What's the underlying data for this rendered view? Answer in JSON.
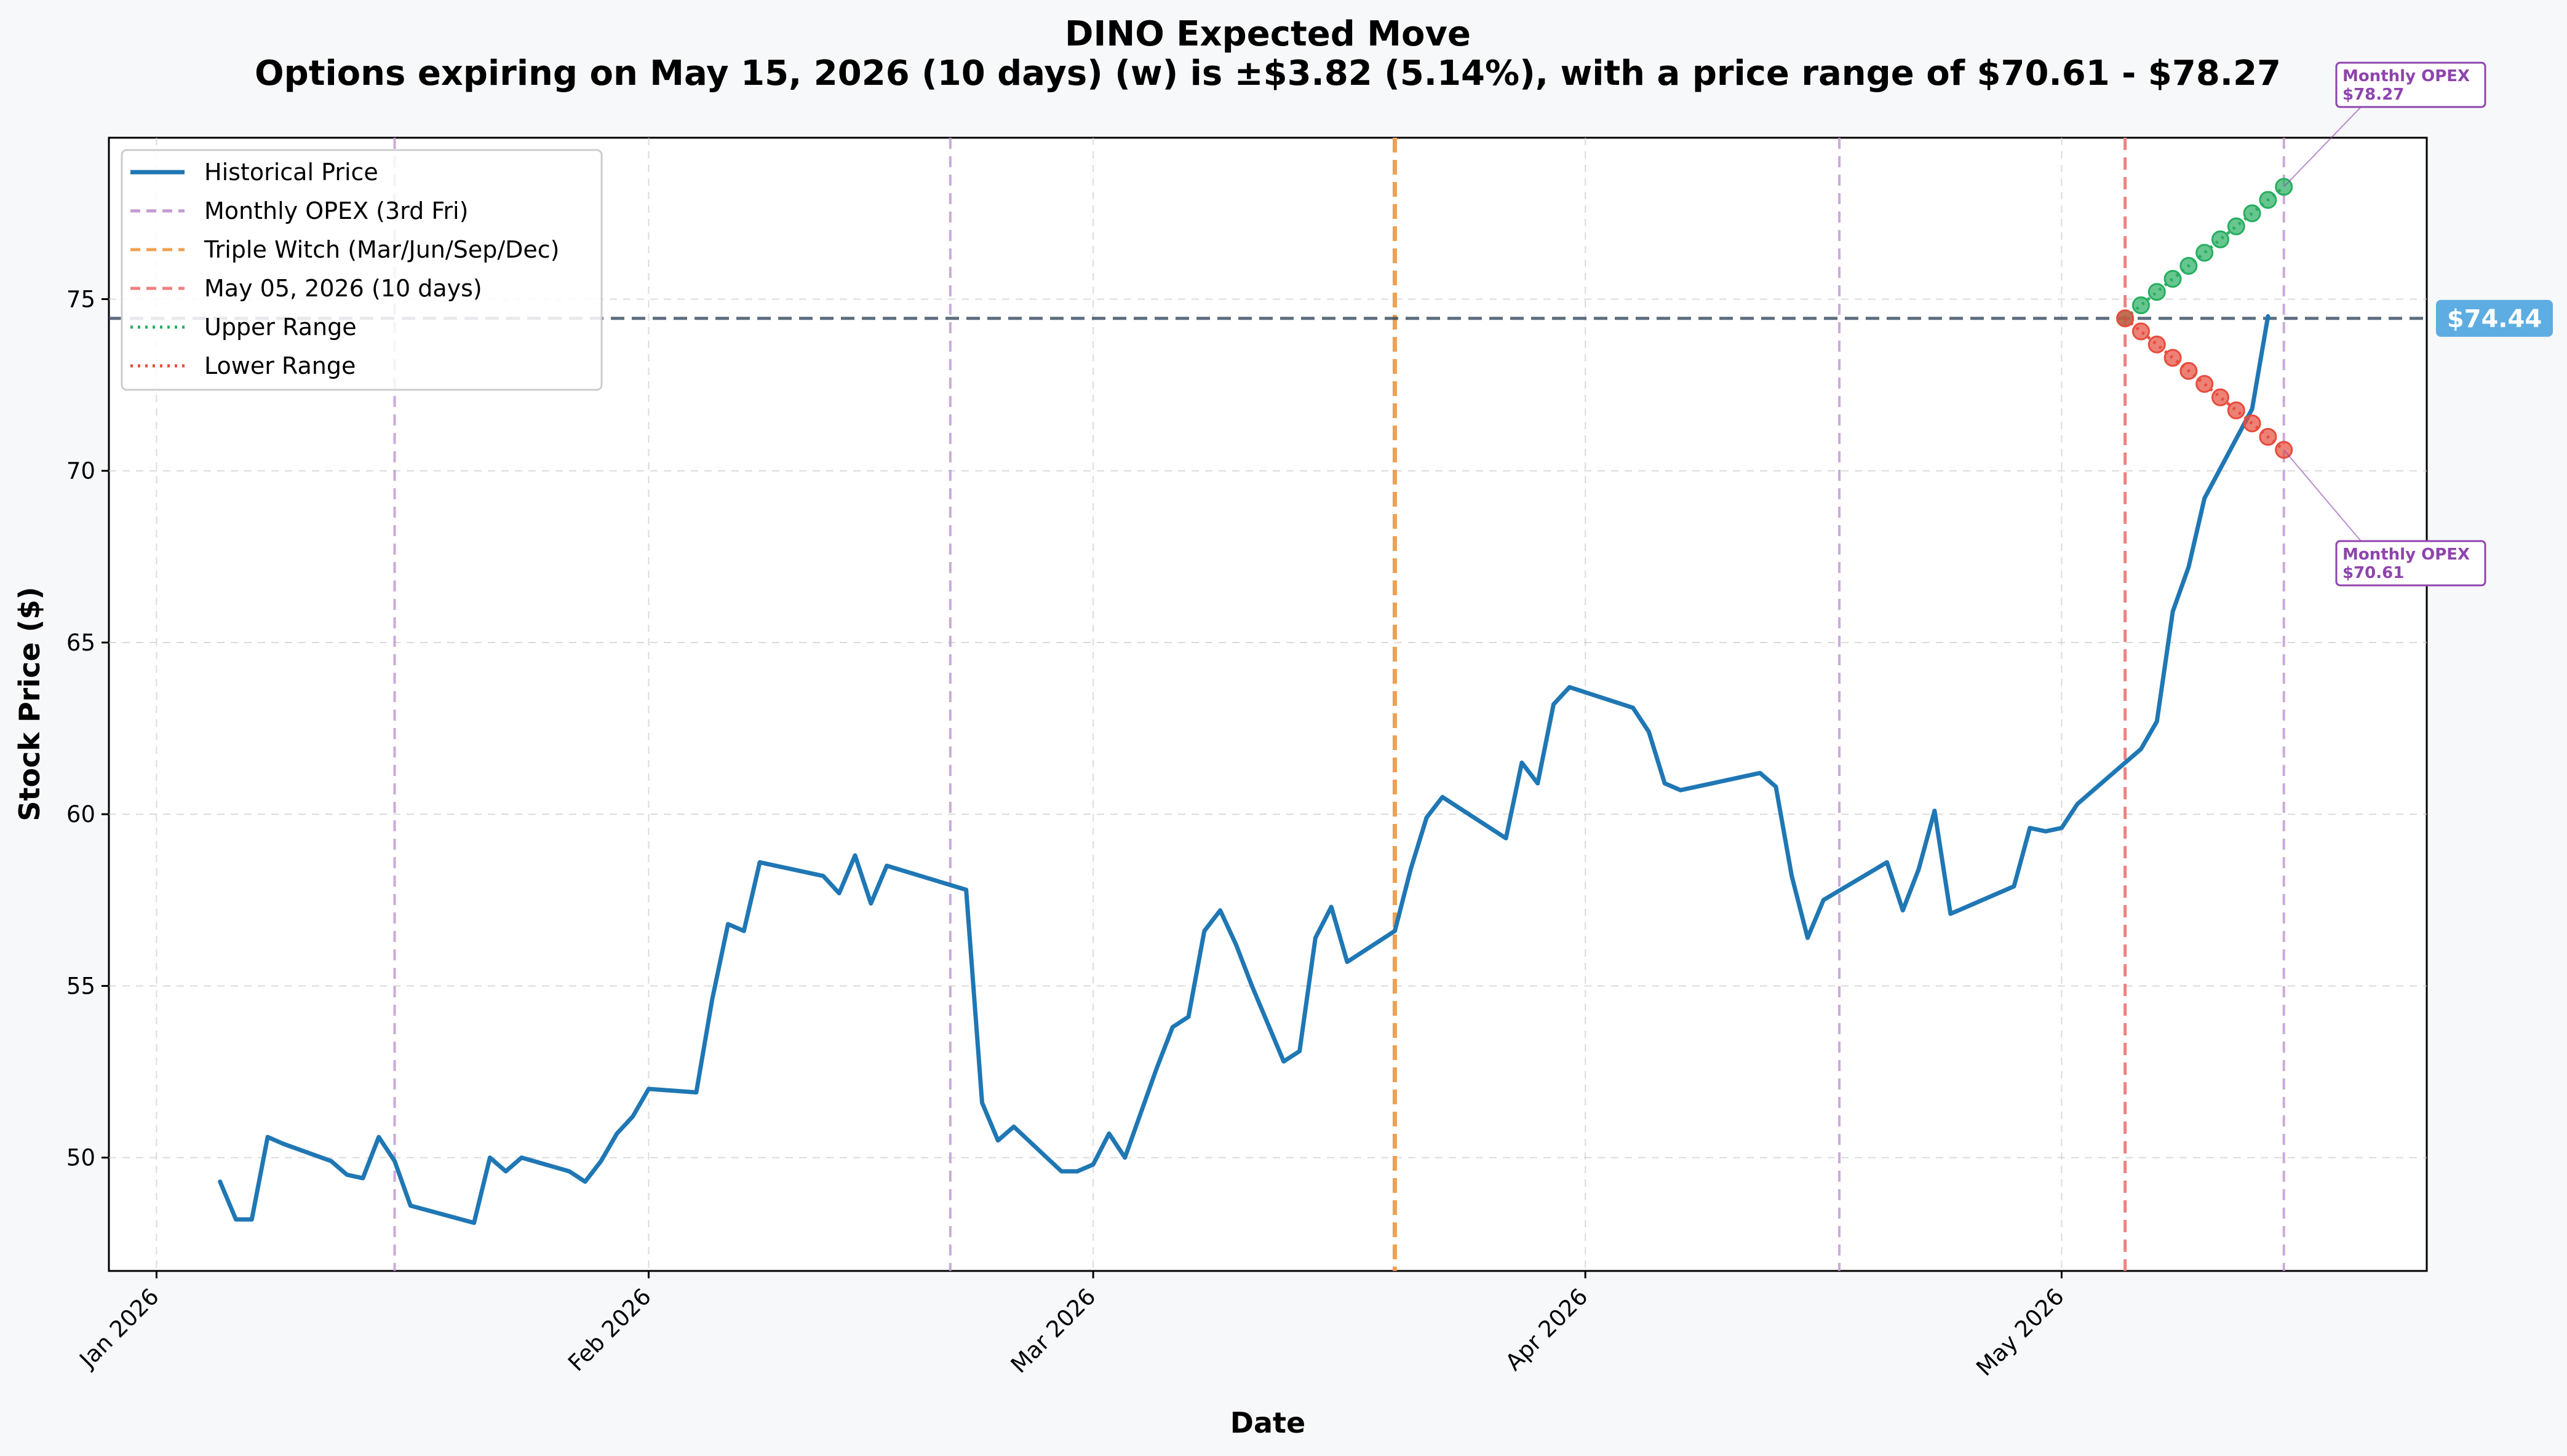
{
  "chart_data": {
    "type": "line",
    "title": "DINO Expected Move",
    "subtitle": "Options expiring on May 15, 2026 (10 days) (w) is ±$3.82 (5.14%), with a price range of $70.61 - $78.27",
    "xlabel": "Date",
    "ylabel": "Stock Price ($)",
    "ylim": [
      46.7,
      79.7
    ],
    "xlim": [
      "2025-12-29",
      "2026-05-24"
    ],
    "grid": true,
    "legend_position": "top-left",
    "x_ticks": [
      {
        "date": "2026-01-01",
        "label": "Jan 2026"
      },
      {
        "date": "2026-02-01",
        "label": "Feb 2026"
      },
      {
        "date": "2026-03-01",
        "label": "Mar 2026"
      },
      {
        "date": "2026-04-01",
        "label": "Apr 2026"
      },
      {
        "date": "2026-05-01",
        "label": "May 2026"
      }
    ],
    "y_ticks": [
      50,
      55,
      60,
      65,
      70,
      75
    ],
    "current_price": 74.44,
    "current_price_label": "$74.44",
    "colors": {
      "historical": "#1f77b4",
      "opex": "#c39bd3",
      "triple_witch": "#f0a050",
      "today": "#f08080",
      "upper": "#27ae60",
      "lower": "#e74c3c",
      "price_line": "#34495e",
      "price_tag": "#5dade2",
      "annotation": "#8e44ad"
    },
    "legend": [
      {
        "label": "Historical Price",
        "style": "solid",
        "color": "#1f77b4"
      },
      {
        "label": "Monthly OPEX (3rd Fri)",
        "style": "dashed",
        "color": "#c39bd3"
      },
      {
        "label": "Triple Witch (Mar/Jun/Sep/Dec)",
        "style": "dashed",
        "color": "#f0a050"
      },
      {
        "label": "May 05, 2026 (10 days)",
        "style": "dashed",
        "color": "#f08080"
      },
      {
        "label": "Upper Range",
        "style": "dotted",
        "color": "#27ae60"
      },
      {
        "label": "Lower Range",
        "style": "dotted",
        "color": "#e74c3c"
      }
    ],
    "vertical_lines": [
      {
        "date": "2026-01-16",
        "kind": "opex"
      },
      {
        "date": "2026-02-20",
        "kind": "opex"
      },
      {
        "date": "2026-03-20",
        "kind": "triple_witch"
      },
      {
        "date": "2026-04-17",
        "kind": "opex"
      },
      {
        "date": "2026-05-05",
        "kind": "today"
      },
      {
        "date": "2026-05-15",
        "kind": "opex"
      }
    ],
    "series": [
      {
        "name": "Historical Price",
        "points": [
          [
            "2026-01-05",
            49.3
          ],
          [
            "2026-01-06",
            48.2
          ],
          [
            "2026-01-07",
            48.2
          ],
          [
            "2026-01-08",
            50.6
          ],
          [
            "2026-01-09",
            50.4
          ],
          [
            "2026-01-12",
            49.9
          ],
          [
            "2026-01-13",
            49.5
          ],
          [
            "2026-01-14",
            49.4
          ],
          [
            "2026-01-15",
            50.6
          ],
          [
            "2026-01-16",
            49.9
          ],
          [
            "2026-01-17",
            48.6
          ],
          [
            "2026-01-21",
            48.1
          ],
          [
            "2026-01-22",
            50.0
          ],
          [
            "2026-01-23",
            49.6
          ],
          [
            "2026-01-24",
            50.0
          ],
          [
            "2026-01-27",
            49.6
          ],
          [
            "2026-01-28",
            49.3
          ],
          [
            "2026-01-29",
            49.9
          ],
          [
            "2026-01-30",
            50.7
          ],
          [
            "2026-01-31",
            51.2
          ],
          [
            "2026-02-01",
            52.0
          ],
          [
            "2026-02-04",
            51.9
          ],
          [
            "2026-02-05",
            54.6
          ],
          [
            "2026-02-06",
            56.8
          ],
          [
            "2026-02-07",
            56.6
          ],
          [
            "2026-02-08",
            58.6
          ],
          [
            "2026-02-12",
            58.2
          ],
          [
            "2026-02-13",
            57.7
          ],
          [
            "2026-02-14",
            58.8
          ],
          [
            "2026-02-15",
            57.4
          ],
          [
            "2026-02-16",
            58.5
          ],
          [
            "2026-02-21",
            57.8
          ],
          [
            "2026-02-22",
            51.6
          ],
          [
            "2026-02-23",
            50.5
          ],
          [
            "2026-02-24",
            50.9
          ],
          [
            "2026-02-27",
            49.6
          ],
          [
            "2026-02-28",
            49.6
          ],
          [
            "2026-03-01",
            49.8
          ],
          [
            "2026-03-02",
            50.7
          ],
          [
            "2026-03-03",
            50.0
          ],
          [
            "2026-03-04",
            51.3
          ],
          [
            "2026-03-05",
            52.6
          ],
          [
            "2026-03-06",
            53.8
          ],
          [
            "2026-03-07",
            54.1
          ],
          [
            "2026-03-08",
            56.6
          ],
          [
            "2026-03-09",
            57.2
          ],
          [
            "2026-03-10",
            56.2
          ],
          [
            "2026-03-11",
            55.0
          ],
          [
            "2026-03-12",
            53.9
          ],
          [
            "2026-03-13",
            52.8
          ],
          [
            "2026-03-14",
            53.1
          ],
          [
            "2026-03-15",
            56.4
          ],
          [
            "2026-03-16",
            57.3
          ],
          [
            "2026-03-17",
            55.7
          ],
          [
            "2026-03-20",
            56.6
          ],
          [
            "2026-03-21",
            58.4
          ],
          [
            "2026-03-22",
            59.9
          ],
          [
            "2026-03-23",
            60.5
          ],
          [
            "2026-03-27",
            59.3
          ],
          [
            "2026-03-28",
            61.5
          ],
          [
            "2026-03-29",
            60.9
          ],
          [
            "2026-03-30",
            63.2
          ],
          [
            "2026-03-31",
            63.7
          ],
          [
            "2026-04-04",
            63.1
          ],
          [
            "2026-04-05",
            62.4
          ],
          [
            "2026-04-06",
            60.9
          ],
          [
            "2026-04-07",
            60.7
          ],
          [
            "2026-04-12",
            61.2
          ],
          [
            "2026-04-13",
            60.8
          ],
          [
            "2026-04-14",
            58.2
          ],
          [
            "2026-04-15",
            56.4
          ],
          [
            "2026-04-16",
            57.5
          ],
          [
            "2026-04-20",
            58.6
          ],
          [
            "2026-04-21",
            57.2
          ],
          [
            "2026-04-22",
            58.4
          ],
          [
            "2026-04-23",
            60.1
          ],
          [
            "2026-04-24",
            57.1
          ],
          [
            "2026-04-28",
            57.9
          ],
          [
            "2026-04-29",
            59.6
          ],
          [
            "2026-04-30",
            59.5
          ],
          [
            "2026-05-01",
            59.6
          ],
          [
            "2026-05-02",
            60.3
          ],
          [
            "2026-05-06",
            61.9
          ],
          [
            "2026-05-07",
            62.7
          ],
          [
            "2026-05-08",
            65.9
          ],
          [
            "2026-05-09",
            67.2
          ],
          [
            "2026-05-10",
            69.2
          ],
          [
            "2026-05-13",
            71.8
          ],
          [
            "2026-05-14",
            74.5
          ]
        ]
      },
      {
        "name": "Upper Range",
        "points": [
          [
            "2026-05-05",
            74.44
          ],
          [
            "2026-05-06",
            74.82
          ],
          [
            "2026-05-07",
            75.21
          ],
          [
            "2026-05-08",
            75.59
          ],
          [
            "2026-05-09",
            75.97
          ],
          [
            "2026-05-10",
            76.35
          ],
          [
            "2026-05-11",
            76.74
          ],
          [
            "2026-05-12",
            77.12
          ],
          [
            "2026-05-13",
            77.5
          ],
          [
            "2026-05-14",
            77.89
          ],
          [
            "2026-05-15",
            78.27
          ]
        ]
      },
      {
        "name": "Lower Range",
        "points": [
          [
            "2026-05-05",
            74.44
          ],
          [
            "2026-05-06",
            74.06
          ],
          [
            "2026-05-07",
            73.68
          ],
          [
            "2026-05-08",
            73.29
          ],
          [
            "2026-05-09",
            72.91
          ],
          [
            "2026-05-10",
            72.53
          ],
          [
            "2026-05-11",
            72.14
          ],
          [
            "2026-05-12",
            71.76
          ],
          [
            "2026-05-13",
            71.38
          ],
          [
            "2026-05-14",
            70.99
          ],
          [
            "2026-05-15",
            70.61
          ]
        ]
      }
    ],
    "annotations": [
      {
        "date": "2026-05-15",
        "value": 78.27,
        "line1": "Monthly OPEX",
        "line2": "$78.27",
        "position": "above"
      },
      {
        "date": "2026-05-15",
        "value": 70.61,
        "line1": "Monthly OPEX",
        "line2": "$70.61",
        "position": "below"
      }
    ]
  }
}
